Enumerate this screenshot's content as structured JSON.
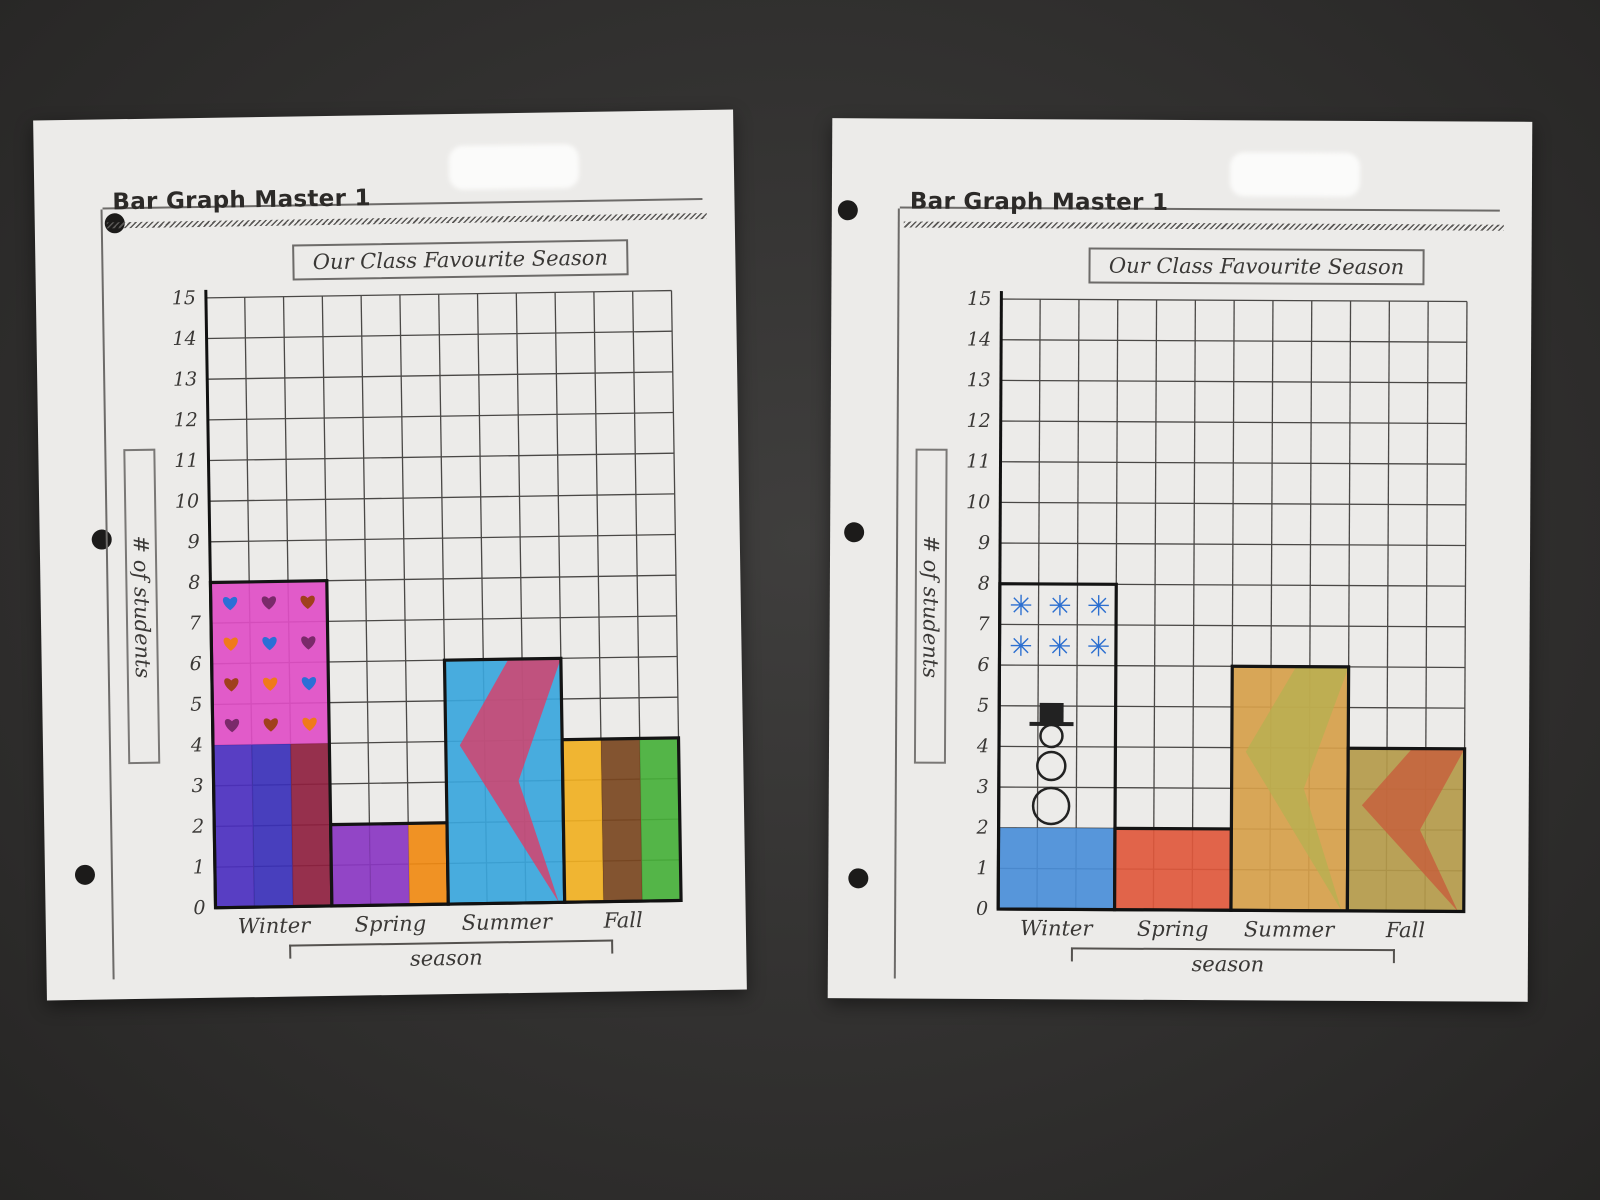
{
  "page": {
    "sheet_title": "Bar Graph Master 1",
    "colors": {
      "background": "#333231",
      "paper": "#ecebe9",
      "ink": "#2c2a28"
    }
  },
  "chart_data": [
    {
      "type": "bar",
      "title": "Our Class Favourite Season",
      "xlabel": "season",
      "ylabel": "# of students",
      "categories": [
        "Winter",
        "Spring",
        "Summer",
        "Fall"
      ],
      "values": [
        8,
        2,
        6,
        4
      ],
      "ylim": [
        0,
        15
      ],
      "yticks": [
        0,
        1,
        2,
        3,
        4,
        5,
        6,
        7,
        8,
        9,
        10,
        11,
        12,
        13,
        14,
        15
      ],
      "grid": true,
      "fills": [
        [
          {
            "from": 0,
            "to": 4,
            "colors": [
              "#4b2fbf",
              "#3a30b8",
              "#8e1f3f"
            ]
          },
          {
            "from": 4,
            "to": 8,
            "colors": [
              "#e04ec6"
            ],
            "icon": "heart-icon",
            "icon_colors": [
              "#2b6fd6",
              "#7a2a6a",
              "#a0401c",
              "#f07a1a"
            ]
          }
        ],
        [
          {
            "from": 0,
            "to": 2,
            "colors": [
              "#8a36c2",
              "#8a36c2",
              "#f08a12"
            ]
          }
        ],
        [
          {
            "from": 0,
            "to": 6,
            "colors": [
              "#3aa6dc"
            ],
            "overlay": "#e8345e"
          }
        ],
        [
          {
            "from": 0,
            "to": 4,
            "colors": [
              "#f0b022",
              "#7a4620",
              "#46b03a"
            ]
          }
        ]
      ]
    },
    {
      "type": "bar",
      "title": "Our Class Favourite Season",
      "xlabel": "season",
      "ylabel": "# of students",
      "categories": [
        "Winter",
        "Spring",
        "Summer",
        "Fall"
      ],
      "values": [
        8,
        2,
        6,
        4
      ],
      "ylim": [
        0,
        15
      ],
      "yticks": [
        0,
        1,
        2,
        3,
        4,
        5,
        6,
        7,
        8,
        9,
        10,
        11,
        12,
        13,
        14,
        15
      ],
      "grid": true,
      "fills": [
        [
          {
            "from": 0,
            "to": 2,
            "colors": [
              "#4a8ed8"
            ]
          },
          {
            "from": 2,
            "to": 8,
            "colors": [
              "none"
            ],
            "icon": "snowman-icon",
            "icon_colors": [
              "#2c6fd0"
            ]
          }
        ],
        [
          {
            "from": 0,
            "to": 2,
            "colors": [
              "#e0583c"
            ]
          }
        ],
        [
          {
            "from": 0,
            "to": 6,
            "colors": [
              "#d6a04a"
            ],
            "overlay": "#b6b050"
          }
        ],
        [
          {
            "from": 0,
            "to": 4,
            "colors": [
              "#b49a4a"
            ],
            "overlay": "#c85a3a"
          }
        ]
      ]
    }
  ]
}
